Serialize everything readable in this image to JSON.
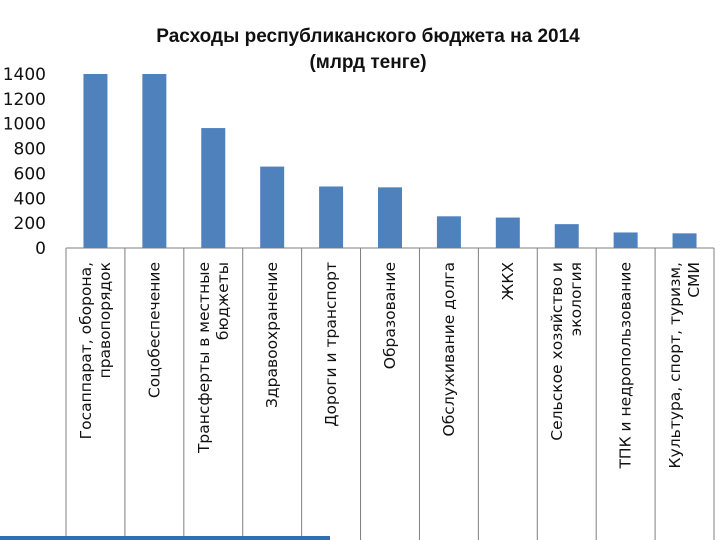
{
  "chart_data": {
    "type": "bar",
    "title": "Расходы республиканского бюджета на 2014",
    "subtitle": "(млрд  тенге)",
    "xlabel": "",
    "ylabel": "",
    "ylim": [
      0,
      1400
    ],
    "yticks": [
      "0",
      "200",
      "400",
      "600",
      "800",
      "1000",
      "1200",
      "1400"
    ],
    "grid": false,
    "legend": "none",
    "bar_color": "#4f81bd",
    "categories": [
      [
        "Госаппарат, оборона,",
        "правопорядок"
      ],
      [
        "Соцобеспечение"
      ],
      [
        "Трансферты в местные",
        "бюджеты"
      ],
      [
        "Здравоохранение"
      ],
      [
        "Дороги и транспорт"
      ],
      [
        "Образование"
      ],
      [
        "Обслуживание долга"
      ],
      [
        "ЖКХ"
      ],
      [
        "Сельское хозяйство и",
        "экология"
      ],
      [
        "ТПК и недропользование"
      ],
      [
        "Культура, спорт, туризм,",
        "СМИ"
      ]
    ],
    "values": [
      1440,
      1440,
      965,
      655,
      495,
      488,
      255,
      245,
      192,
      125,
      118
    ]
  }
}
